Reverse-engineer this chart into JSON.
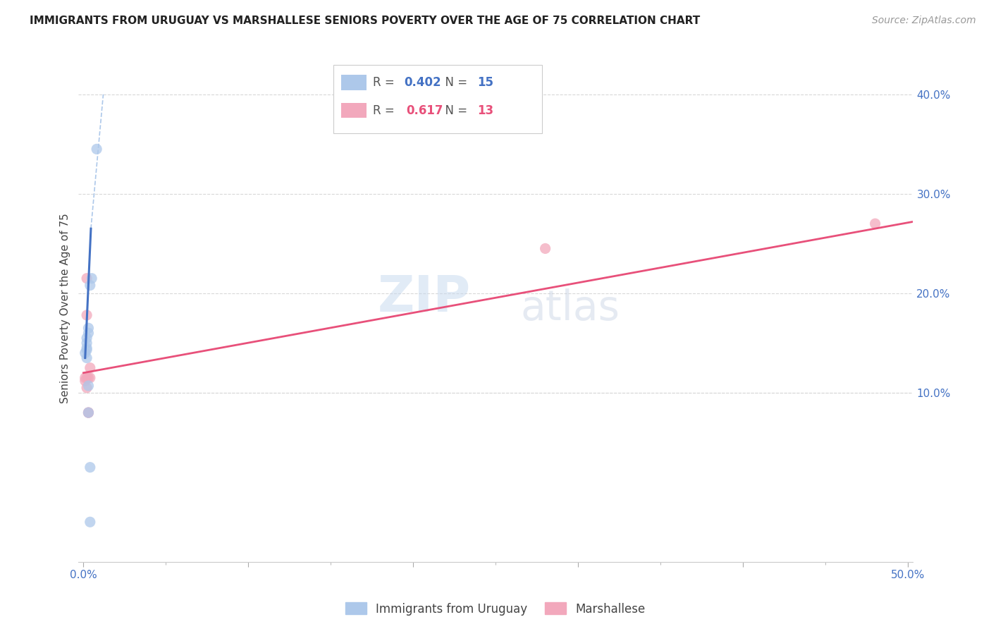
{
  "title": "IMMIGRANTS FROM URUGUAY VS MARSHALLESE SENIORS POVERTY OVER THE AGE OF 75 CORRELATION CHART",
  "source": "Source: ZipAtlas.com",
  "ylabel": "Seniors Poverty Over the Age of 75",
  "xlabel": "",
  "xlim": [
    -0.003,
    0.503
  ],
  "ylim": [
    -0.07,
    0.44
  ],
  "xtick_positions": [
    0.0,
    0.1,
    0.2,
    0.3,
    0.4,
    0.5
  ],
  "xtick_minor_positions": [
    0.05,
    0.15,
    0.25,
    0.35,
    0.45
  ],
  "ytick_positions": [
    0.1,
    0.2,
    0.3,
    0.4
  ],
  "ytick_labels": [
    "10.0%",
    "20.0%",
    "30.0%",
    "40.0%"
  ],
  "xtick_labels_ends": {
    "0.0": "0.0%",
    "0.5": "50.0%"
  },
  "legend_entries": [
    {
      "label": "R = 0.402   N = 15",
      "color": "#adc8ea"
    },
    {
      "label": "R =  0.617   N = 13",
      "color": "#f2a8bc"
    }
  ],
  "legend_label_uruguay": "Immigrants from Uruguay",
  "legend_label_marshallese": "Marshallese",
  "uruguay_scatter": [
    [
      0.008,
      0.345
    ],
    [
      0.005,
      0.215
    ],
    [
      0.004,
      0.208
    ],
    [
      0.003,
      0.165
    ],
    [
      0.003,
      0.16
    ],
    [
      0.002,
      0.155
    ],
    [
      0.002,
      0.15
    ],
    [
      0.002,
      0.145
    ],
    [
      0.002,
      0.143
    ],
    [
      0.001,
      0.14
    ],
    [
      0.002,
      0.135
    ],
    [
      0.003,
      0.107
    ],
    [
      0.003,
      0.08
    ],
    [
      0.004,
      0.025
    ],
    [
      0.004,
      -0.03
    ]
  ],
  "marshallese_scatter": [
    [
      0.002,
      0.215
    ],
    [
      0.002,
      0.178
    ],
    [
      0.002,
      0.115
    ],
    [
      0.002,
      0.105
    ],
    [
      0.003,
      0.115
    ],
    [
      0.003,
      0.08
    ],
    [
      0.003,
      0.08
    ],
    [
      0.004,
      0.125
    ],
    [
      0.004,
      0.115
    ],
    [
      0.001,
      0.115
    ],
    [
      0.001,
      0.112
    ],
    [
      0.28,
      0.245
    ],
    [
      0.48,
      0.27
    ]
  ],
  "uruguay_solid_line": [
    [
      0.001,
      0.135
    ],
    [
      0.0045,
      0.265
    ]
  ],
  "uruguay_dashed_line": [
    [
      0.0045,
      0.265
    ],
    [
      0.012,
      0.4
    ]
  ],
  "marshallese_line": [
    [
      0.0,
      0.12
    ],
    [
      0.503,
      0.272
    ]
  ],
  "background_color": "#ffffff",
  "grid_color": "#d8d8d8",
  "scatter_size": 120,
  "uruguay_color": "#adc8ea",
  "marshallese_color": "#f2a8bc",
  "uruguay_line_color": "#4472c4",
  "marshallese_line_color": "#e8507a",
  "dashed_line_color": "#adc8ea",
  "watermark_zip": "ZIP",
  "watermark_atlas": "atlas",
  "title_fontsize": 11,
  "source_fontsize": 10,
  "axis_label_color": "#4472c4"
}
